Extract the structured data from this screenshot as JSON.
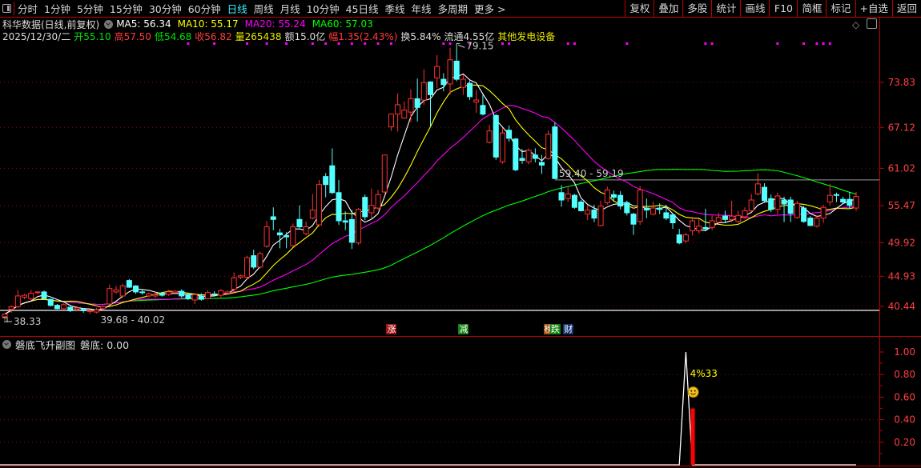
{
  "toolbar": {
    "periods": [
      "分时",
      "1分钟",
      "5分钟",
      "15分钟",
      "30分钟",
      "60分钟",
      "日线",
      "周线",
      "月线",
      "10分钟",
      "45日线",
      "季线",
      "年线",
      "多周期",
      "更多 >"
    ],
    "active_period": "日线",
    "buttons": [
      "复权",
      "叠加",
      "多股",
      "统计",
      "画线",
      "F10",
      "简框",
      "标记",
      "+自选",
      "返回"
    ]
  },
  "header": {
    "title": "科华数据(日线,前复权)",
    "ma_legend": [
      {
        "label": "MA5: 56.34",
        "color": "#ffffff"
      },
      {
        "label": "MA10: 55.17",
        "color": "#ffff00"
      },
      {
        "label": "MA20: 55.24",
        "color": "#ff00ff"
      },
      {
        "label": "MA60: 57.03",
        "color": "#00ff00"
      }
    ],
    "quote": [
      {
        "text": "2025/12/30/二",
        "color": "#dddddd"
      },
      {
        "text": "开55.10",
        "color": "#00e000"
      },
      {
        "text": "高57.50",
        "color": "#ff3c3c"
      },
      {
        "text": "低54.68",
        "color": "#00e000"
      },
      {
        "text": "收56.82",
        "color": "#ff3c3c"
      },
      {
        "text": "量265438",
        "color": "#e8e800"
      },
      {
        "text": "额15.0亿",
        "color": "#dddddd"
      },
      {
        "text": "幅1.35(2.43%)",
        "color": "#ff3c3c"
      },
      {
        "text": "换5.84%",
        "color": "#dddddd"
      },
      {
        "text": "流通4.55亿",
        "color": "#dddddd"
      },
      {
        "text": "其他发电设备",
        "color": "#e8e800"
      }
    ]
  },
  "event_tags": [
    {
      "text": "涨",
      "bg": "#a01010",
      "index": 59
    },
    {
      "text": "减",
      "bg": "#108010",
      "index": 70
    },
    {
      "text": "榜",
      "bg": "#a05010",
      "index": 83
    },
    {
      "text": "跌",
      "bg": "#108010",
      "index": 84
    },
    {
      "text": "财",
      "bg": "#103070",
      "index": 86
    }
  ],
  "sub_chart_header": {
    "title": "磐底飞升副图",
    "value": "磐底: 0.00"
  },
  "chart_data": [
    {
      "type": "candlestick",
      "title": "",
      "y_scale": "linear",
      "ylim": [
        40.44,
        73.83
      ],
      "y_ticks": [
        "73.83",
        "67.12",
        "61.02",
        "55.47",
        "49.92",
        "44.93",
        "40.44"
      ],
      "grid": "dotted horizontal at ticks",
      "colors": {
        "up": "#ff3232",
        "down": "#54ffff",
        "ma5": "#ffffff",
        "ma10": "#ffff00",
        "ma20": "#ff00ff",
        "ma60": "#00ff00"
      },
      "moving_averages": [
        5,
        10,
        20,
        60
      ],
      "annotations": {
        "high_label": "79.15",
        "high_index": 69,
        "low_label": "38.33",
        "low_index": 0,
        "range_label_left": "39.68 - 40.02",
        "range_label_left_index": 14,
        "range_label_right": "59.40 - 59.19",
        "range_line_price": 59.3,
        "range_line_from_index": 84
      },
      "signal_marker_indices": [
        28,
        32,
        37,
        40,
        43,
        47,
        49,
        51,
        53,
        55,
        57,
        59,
        67,
        68,
        71,
        76,
        77,
        86,
        87,
        95,
        107,
        108,
        118,
        122,
        124,
        125,
        126
      ],
      "candles_ohlc": [
        [
          38.9,
          39.4,
          38.33,
          39.3
        ],
        [
          40.0,
          40.6,
          39.5,
          40.4
        ],
        [
          40.4,
          42.9,
          40.2,
          42.0
        ],
        [
          41.8,
          42.3,
          41.5,
          42.1
        ],
        [
          41.6,
          42.9,
          41.4,
          42.4
        ],
        [
          42.5,
          42.7,
          42.3,
          42.6
        ],
        [
          42.6,
          42.8,
          41.5,
          41.6
        ],
        [
          41.5,
          41.6,
          40.4,
          40.6
        ],
        [
          40.6,
          40.8,
          40.0,
          40.1
        ],
        [
          40.1,
          40.9,
          40.0,
          40.7
        ],
        [
          40.3,
          40.5,
          39.6,
          39.8
        ],
        [
          40.0,
          40.5,
          39.7,
          40.2
        ],
        [
          40.0,
          40.2,
          39.5,
          39.8
        ],
        [
          39.8,
          40.0,
          39.3,
          39.8
        ],
        [
          39.6,
          40.2,
          39.4,
          39.9
        ],
        [
          40.1,
          40.6,
          39.9,
          40.4
        ],
        [
          40.8,
          43.7,
          40.6,
          43.1
        ],
        [
          42.6,
          43.5,
          42.3,
          42.9
        ],
        [
          42.0,
          43.8,
          41.8,
          43.5
        ],
        [
          44.3,
          44.5,
          43.2,
          43.3
        ],
        [
          43.5,
          43.6,
          42.3,
          42.6
        ],
        [
          42.6,
          42.9,
          42.2,
          42.5
        ],
        [
          42.0,
          42.5,
          41.8,
          42.3
        ],
        [
          42.0,
          42.5,
          41.7,
          42.2
        ],
        [
          42.4,
          42.6,
          41.9,
          42.1
        ],
        [
          42.2,
          42.9,
          42.0,
          42.6
        ],
        [
          42.5,
          42.8,
          42.2,
          42.7
        ],
        [
          42.7,
          43.0,
          41.7,
          42.0
        ],
        [
          42.2,
          42.5,
          41.4,
          41.6
        ],
        [
          41.4,
          42.4,
          40.8,
          42.2
        ],
        [
          42.0,
          42.4,
          41.3,
          41.5
        ],
        [
          41.6,
          42.8,
          41.5,
          42.5
        ],
        [
          42.3,
          42.7,
          42.0,
          42.2
        ],
        [
          42.1,
          43.0,
          41.8,
          42.8
        ],
        [
          42.4,
          42.8,
          42.2,
          42.6
        ],
        [
          43.0,
          45.5,
          42.6,
          44.7
        ],
        [
          44.8,
          45.2,
          44.5,
          45.0
        ],
        [
          44.8,
          48.0,
          44.4,
          47.7
        ],
        [
          48.0,
          48.9,
          46.0,
          46.3
        ],
        [
          46.3,
          48.6,
          46.1,
          48.3
        ],
        [
          49.4,
          53.2,
          49.2,
          52.3
        ],
        [
          53.8,
          55.2,
          51.8,
          53.4
        ],
        [
          51.4,
          52.0,
          49.1,
          51.1
        ],
        [
          51.0,
          51.5,
          49.1,
          50.8
        ],
        [
          49.5,
          52.8,
          49.3,
          52.3
        ],
        [
          53.4,
          55.5,
          52.1,
          52.3
        ],
        [
          51.3,
          53.1,
          51.0,
          52.3
        ],
        [
          53.6,
          57.2,
          53.4,
          54.8
        ],
        [
          52.6,
          59.3,
          52.4,
          58.6
        ],
        [
          59.8,
          60.3,
          56.7,
          58.6
        ],
        [
          61.4,
          64.0,
          57.2,
          57.4
        ],
        [
          57.4,
          59.3,
          52.6,
          53.2
        ],
        [
          53.2,
          54.6,
          51.8,
          53.0
        ],
        [
          53.4,
          54.8,
          49.0,
          50.0
        ],
        [
          49.9,
          55.1,
          49.6,
          54.9
        ],
        [
          56.7,
          57.1,
          53.3,
          53.8
        ],
        [
          54.4,
          58.0,
          53.5,
          55.5
        ],
        [
          55.1,
          57.8,
          54.8,
          57.1
        ],
        [
          57.5,
          63.0,
          57.3,
          63.0
        ],
        [
          67.2,
          69.1,
          66.6,
          69.1
        ],
        [
          69.1,
          72.2,
          66.5,
          70.5
        ],
        [
          68.5,
          71.0,
          68.4,
          69.7
        ],
        [
          69.4,
          72.8,
          67.9,
          71.4
        ],
        [
          71.4,
          74.4,
          68.0,
          70.1
        ],
        [
          71.2,
          75.8,
          70.5,
          73.8
        ],
        [
          73.9,
          74.0,
          67.3,
          72.0
        ],
        [
          74.5,
          77.9,
          73.0,
          76.2
        ],
        [
          74.3,
          75.2,
          72.5,
          73.5
        ],
        [
          73.6,
          79.0,
          72.0,
          77.2
        ],
        [
          77.0,
          79.15,
          74.0,
          74.3
        ],
        [
          73.1,
          75.0,
          72.0,
          74.3
        ],
        [
          73.7,
          74.1,
          71.2,
          71.7
        ],
        [
          70.9,
          72.7,
          69.3,
          71.2
        ],
        [
          70.4,
          72.0,
          68.9,
          69.1
        ],
        [
          64.9,
          67.5,
          64.7,
          66.6
        ],
        [
          68.9,
          69.1,
          62.3,
          62.7
        ],
        [
          62.0,
          67.0,
          61.7,
          66.3
        ],
        [
          66.7,
          67.4,
          65.0,
          65.5
        ],
        [
          65.4,
          65.5,
          60.6,
          60.8
        ],
        [
          62.5,
          63.9,
          61.7,
          62.2
        ],
        [
          62.0,
          64.0,
          61.6,
          63.7
        ],
        [
          63.0,
          64.0,
          61.9,
          62.5
        ],
        [
          61.9,
          63.0,
          60.2,
          61.5
        ],
        [
          62.5,
          66.7,
          62.3,
          66.1
        ],
        [
          67.2,
          67.9,
          59.4,
          59.5
        ],
        [
          57.4,
          58.5,
          55.3,
          56.3
        ],
        [
          56.5,
          58.3,
          56.0,
          57.2
        ],
        [
          57.0,
          57.2,
          55.0,
          55.2
        ],
        [
          56.0,
          56.3,
          54.6,
          54.7
        ],
        [
          54.2,
          55.6,
          53.3,
          54.8
        ],
        [
          54.8,
          55.6,
          53.0,
          53.6
        ],
        [
          52.5,
          56.2,
          52.4,
          55.4
        ],
        [
          55.9,
          58.3,
          55.6,
          57.8
        ],
        [
          57.1,
          57.7,
          56.1,
          56.7
        ],
        [
          57.0,
          57.6,
          54.9,
          55.4
        ],
        [
          55.9,
          56.2,
          54.0,
          54.4
        ],
        [
          54.2,
          54.4,
          51.1,
          52.7
        ],
        [
          53.1,
          58.4,
          52.6,
          57.8
        ],
        [
          55.1,
          56.5,
          53.6,
          54.8
        ],
        [
          54.2,
          56.1,
          54.0,
          55.1
        ],
        [
          55.1,
          55.8,
          54.2,
          54.9
        ],
        [
          54.4,
          55.6,
          53.3,
          53.6
        ],
        [
          54.1,
          54.2,
          52.0,
          52.9
        ],
        [
          51.1,
          52.0,
          49.7,
          49.9
        ],
        [
          50.2,
          51.4,
          49.9,
          51.1
        ],
        [
          51.7,
          53.8,
          51.0,
          53.2
        ],
        [
          51.7,
          53.5,
          51.3,
          52.4
        ],
        [
          52.2,
          55.0,
          51.8,
          52.0
        ],
        [
          52.2,
          54.0,
          51.8,
          53.2
        ],
        [
          53.0,
          54.4,
          52.8,
          53.7
        ],
        [
          53.9,
          54.7,
          53.0,
          53.4
        ],
        [
          53.4,
          56.2,
          53.0,
          53.9
        ],
        [
          53.1,
          54.7,
          52.8,
          54.0
        ],
        [
          53.8,
          55.2,
          53.5,
          54.7
        ],
        [
          54.7,
          57.2,
          54.5,
          56.3
        ],
        [
          57.2,
          60.3,
          57.0,
          58.7
        ],
        [
          58.2,
          58.8,
          56.0,
          56.2
        ],
        [
          56.5,
          57.1,
          54.5,
          54.9
        ],
        [
          54.9,
          57.4,
          54.2,
          56.9
        ],
        [
          56.3,
          56.8,
          53.0,
          55.7
        ],
        [
          56.3,
          56.8,
          53.0,
          54.3
        ],
        [
          53.7,
          56.2,
          53.5,
          55.8
        ],
        [
          55.1,
          55.4,
          52.9,
          53.1
        ],
        [
          53.6,
          53.9,
          52.4,
          52.5
        ],
        [
          52.4,
          54.0,
          52.2,
          53.6
        ],
        [
          53.6,
          55.6,
          52.9,
          55.2
        ],
        [
          56.0,
          58.7,
          55.5,
          57.0
        ],
        [
          57.1,
          57.4,
          56.0,
          57.0
        ],
        [
          56.4,
          56.8,
          55.8,
          56.0
        ],
        [
          56.4,
          57.5,
          55.0,
          55.5
        ],
        [
          55.1,
          57.5,
          54.68,
          56.82
        ]
      ]
    },
    {
      "type": "line+bar",
      "title": "磐底飞升副图",
      "ylim": [
        0,
        1.0
      ],
      "y_ticks": [
        "1.00",
        "0.80",
        "0.60",
        "0.40",
        "0.20"
      ],
      "grid": "dotted horizontal at ticks",
      "line_color": "#ffffff",
      "bar_color": "#ff0000",
      "line_points": [
        {
          "index": 103,
          "value": 0
        },
        {
          "index": 104,
          "value": 1.0
        },
        {
          "index": 105,
          "value": 0
        }
      ],
      "bars": [
        {
          "index": 105,
          "value": 0.5
        }
      ],
      "text_annotation": {
        "text": "4%33",
        "index": 105,
        "value": 0.81,
        "color": "#ffff00"
      },
      "icon_annotation": {
        "icon": "smiley-icon",
        "index": 105,
        "value": 0.63
      }
    }
  ]
}
